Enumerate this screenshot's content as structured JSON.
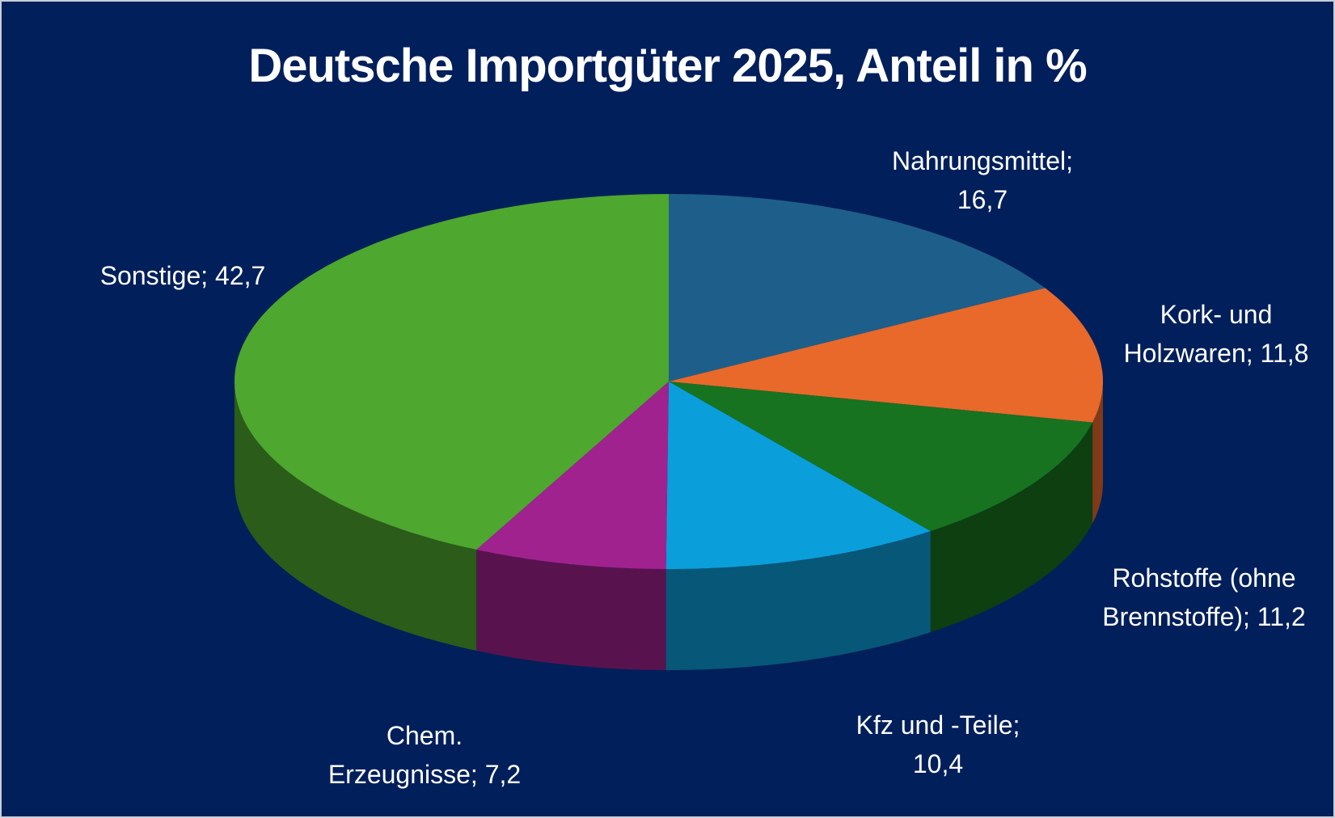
{
  "chart_data": {
    "type": "pie",
    "title": "Deutsche Importgüter 2025, Anteil in %",
    "categories": [
      "Nahrungsmittel",
      "Kork- und Holzwaren",
      "Rohstoffe (ohne Brennstoffe)",
      "Kfz und -Teile",
      "Chem. Erzeugnisse",
      "Sonstige"
    ],
    "values": [
      16.7,
      11.8,
      11.2,
      10.4,
      7.2,
      42.7
    ],
    "value_labels": [
      "16,7",
      "11,8",
      "11,2",
      "10,4",
      "7,2",
      "42,7"
    ],
    "label_separator": ";",
    "colors": [
      "#1d5f8a",
      "#e8692a",
      "#17731f",
      "#0a9fdb",
      "#a0228f",
      "#4ea72e"
    ]
  }
}
